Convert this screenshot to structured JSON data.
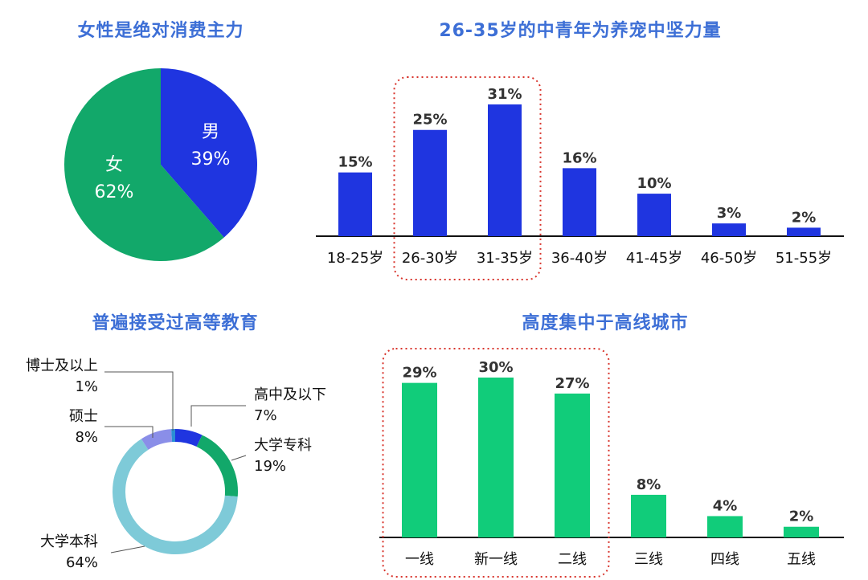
{
  "colors": {
    "title": "#3d6fd6",
    "blue": "#1f35e0",
    "green": "#12a86a",
    "bright_green": "#11cc7a",
    "light_blue": "#7ecad8",
    "lavender": "#8a8ee8",
    "highlight": "#d8332b"
  },
  "chart_data": [
    {
      "type": "pie",
      "title": "女性是绝对消费主力",
      "slices": [
        {
          "label": "男",
          "value": 39,
          "display": "39%",
          "color": "#1f35e0"
        },
        {
          "label": "女",
          "value": 62,
          "display": "62%",
          "color": "#12a86a"
        }
      ]
    },
    {
      "type": "bar",
      "title": "26-35岁的中青年为养宠中坚力量",
      "categories": [
        "18-25岁",
        "26-30岁",
        "31-35岁",
        "36-40岁",
        "41-45岁",
        "46-50岁",
        "51-55岁"
      ],
      "values": [
        15,
        25,
        31,
        16,
        10,
        3,
        2
      ],
      "value_labels": [
        "15%",
        "25%",
        "31%",
        "16%",
        "10%",
        "3%",
        "2%"
      ],
      "color": "#1f35e0",
      "highlighted": [
        "26-30岁",
        "31-35岁"
      ]
    },
    {
      "type": "pie",
      "title": "普遍接受过高等教育",
      "donut": true,
      "slices": [
        {
          "label": "高中及以下",
          "value": 7,
          "display": "7%",
          "color": "#1f35e0"
        },
        {
          "label": "大学专科",
          "value": 19,
          "display": "19%",
          "color": "#12a86a"
        },
        {
          "label": "大学本科",
          "value": 64,
          "display": "64%",
          "color": "#7ecad8"
        },
        {
          "label": "硕士",
          "value": 8,
          "display": "8%",
          "color": "#8a8ee8"
        },
        {
          "label": "博士及以上",
          "value": 1,
          "display": "1%",
          "color": "#2a8fd4"
        }
      ]
    },
    {
      "type": "bar",
      "title": "高度集中于高线城市",
      "categories": [
        "一线",
        "新一线",
        "二线",
        "三线",
        "四线",
        "五线"
      ],
      "values": [
        29,
        30,
        27,
        8,
        4,
        2
      ],
      "value_labels": [
        "29%",
        "30%",
        "27%",
        "8%",
        "4%",
        "2%"
      ],
      "color": "#11cc7a",
      "highlighted": [
        "一线",
        "新一线",
        "二线"
      ]
    }
  ]
}
